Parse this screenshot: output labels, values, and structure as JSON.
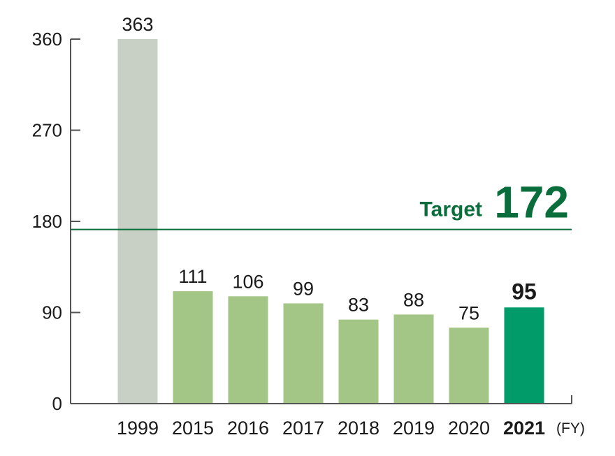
{
  "chart_data": {
    "type": "bar",
    "categories": [
      "1999",
      "2015",
      "2016",
      "2017",
      "2018",
      "2019",
      "2020",
      "2021"
    ],
    "values": [
      363,
      111,
      106,
      99,
      83,
      88,
      75,
      95
    ],
    "value_labels": [
      "363",
      "111",
      "106",
      "99",
      "83",
      "88",
      "75",
      "95"
    ],
    "highlight_category": "2021",
    "ylim": [
      0,
      360
    ],
    "yticks": [
      0,
      90,
      180,
      270,
      360
    ],
    "x_unit": "(FY)",
    "target": {
      "label": "Target",
      "value": 172,
      "value_label": "172"
    },
    "colors": {
      "baseline_bar": "#c8cfc4",
      "bar": "#a3c585",
      "highlight_bar": "#009b68",
      "target": "#0a6e3c",
      "axis": "#555555"
    },
    "grid": false,
    "legend": "none"
  }
}
